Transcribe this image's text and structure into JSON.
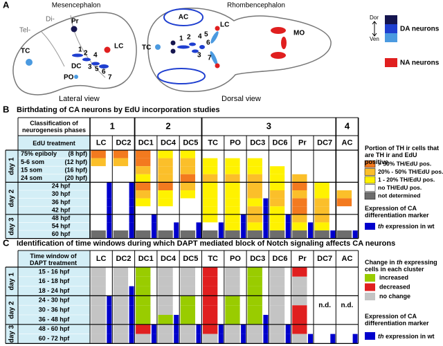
{
  "panel_a": {
    "label": "A",
    "mesencephalon": "Mesencephalon",
    "rhombencephalon": "Rhombencephalon",
    "lateral": {
      "di": "Di-",
      "tel": "Tel-",
      "pr": "Pr",
      "lc": "LC",
      "tc": "TC",
      "dc": "DC",
      "po": "PO",
      "numbers": [
        "1",
        "2",
        "3",
        "4",
        "5",
        "6",
        "7"
      ],
      "caption": "Lateral view"
    },
    "dorsal": {
      "ac": "AC",
      "lc": "LC",
      "tc": "TC",
      "mo": "MO",
      "numbers": [
        "1",
        "2",
        "3",
        "4",
        "5",
        "6",
        "7"
      ],
      "caption": "Dorsal view"
    },
    "legend": {
      "dor": "Dor",
      "ven": "Ven",
      "da": "DA neurons",
      "na": "NA neurons"
    }
  },
  "panel_b": {
    "label": "B",
    "title": "Birthdating of CA neurons by EdU incorporation studies",
    "phase_header": "Classification of neurogenesis phases",
    "treatment_header": "EdU treatment",
    "phases": [
      {
        "label": "1",
        "clusters": [
          {
            "name": "LC",
            "cells": [
              0,
              1,
              3,
              3,
              3,
              3,
              3,
              3,
              3,
              3,
              4
            ],
            "th": [
              0,
              0,
              0,
              0,
              1,
              1,
              1,
              1,
              1,
              1,
              1
            ]
          },
          {
            "name": "DC2",
            "cells": [
              0,
              1,
              3,
              3,
              3,
              3,
              3,
              3,
              3,
              3,
              4
            ],
            "th": [
              0,
              0,
              0,
              0,
              1,
              1,
              1,
              1,
              1,
              1,
              1
            ]
          }
        ]
      },
      {
        "label": "2",
        "clusters": [
          {
            "name": "DC1",
            "cells": [
              0,
              0,
              1,
              2,
              0,
              1,
              2,
              3,
              3,
              3,
              4
            ],
            "th": [
              0,
              0,
              0,
              0,
              0,
              0,
              0,
              0,
              1,
              1,
              1
            ]
          },
          {
            "name": "DC4",
            "cells": [
              2,
              1,
              1,
              1,
              0,
              2,
              2,
              3,
              3,
              3,
              4
            ],
            "th": [
              0,
              0,
              0,
              0,
              0,
              0,
              0,
              0,
              0,
              1,
              1
            ]
          },
          {
            "name": "DC5",
            "cells": [
              2,
              1,
              1,
              0,
              1,
              2,
              3,
              3,
              3,
              3,
              4
            ],
            "th": [
              0,
              0,
              0,
              0,
              0,
              0,
              0,
              0,
              0,
              1,
              1
            ]
          }
        ]
      },
      {
        "label": "3",
        "clusters": [
          {
            "name": "TC",
            "cells": [
              3,
              2,
              2,
              1,
              2,
              2,
              2,
              2,
              2,
              3,
              4
            ],
            "th": [
              0,
              0,
              0,
              0,
              0,
              0,
              0,
              0,
              0,
              1,
              1
            ]
          },
          {
            "name": "PO",
            "cells": [
              3,
              2,
              2,
              1,
              2,
              2,
              2,
              2,
              2,
              2,
              4
            ],
            "th": [
              0,
              0,
              0,
              0,
              0,
              0,
              0,
              0,
              1,
              1,
              1
            ]
          },
          {
            "name": "DC3",
            "cells": [
              3,
              2,
              2,
              1,
              1,
              1,
              2,
              1,
              1,
              2,
              4
            ],
            "th": [
              0,
              0,
              0,
              0,
              0,
              0,
              1,
              1,
              1,
              1,
              1
            ]
          },
          {
            "name": "DC6",
            "cells": [
              3,
              3,
              2,
              2,
              2,
              1,
              1,
              2,
              2,
              2,
              4
            ],
            "th": [
              0,
              0,
              0,
              0,
              0,
              0,
              0,
              0,
              1,
              1,
              1
            ]
          },
          {
            "name": "Pr",
            "cells": [
              3,
              3,
              3,
              1,
              0,
              1,
              0,
              0,
              1,
              2,
              4
            ],
            "th": [
              0,
              0,
              0,
              0,
              0,
              0,
              0,
              0,
              0,
              1,
              1
            ]
          },
          {
            "name": "DC7",
            "cells": [
              3,
              3,
              3,
              3,
              2,
              2,
              1,
              1,
              1,
              2,
              4
            ],
            "th": [
              0,
              0,
              0,
              0,
              0,
              0,
              0,
              0,
              0,
              0,
              1
            ]
          }
        ]
      },
      {
        "label": "4",
        "clusters": [
          {
            "name": "AC",
            "cells": [
              3,
              3,
              3,
              3,
              3,
              1,
              0,
              3,
              3,
              3,
              4
            ],
            "th": [
              0,
              0,
              0,
              0,
              0,
              0,
              0,
              0,
              0,
              0,
              1
            ]
          }
        ]
      }
    ],
    "days": [
      {
        "label": "day 1",
        "rows": [
          {
            "stage": "75% epiboly",
            "hpf": "(8 hpf)"
          },
          {
            "stage": "5-6 som",
            "hpf": "(12 hpf)"
          },
          {
            "stage": "15 som",
            "hpf": "(16 hpf)"
          },
          {
            "stage": "24 som",
            "hpf": "(20 hpf)"
          }
        ]
      },
      {
        "label": "day 2",
        "rows": [
          {
            "stage": "24 hpf"
          },
          {
            "stage": "30 hpf"
          },
          {
            "stage": "36 hpf"
          },
          {
            "stage": "42 hpf"
          }
        ]
      },
      {
        "label": "day 3",
        "rows": [
          {
            "stage": "48 hpf"
          },
          {
            "stage": "54 hpf"
          },
          {
            "stage": "60 hpf"
          }
        ]
      }
    ],
    "legend_title": "Portion of TH ir cells that are TH ir and EdU positive",
    "legend": [
      {
        "label": "> 50% TH/EdU pos.",
        "color": "#f37a1f"
      },
      {
        "label": "20% - 50% TH/EdU pos.",
        "color": "#fbbf2a"
      },
      {
        "label": "1 - 20% TH/EdU pos.",
        "color": "#fff200"
      },
      {
        "label": "no  TH/EdU pos.",
        "color": "#ffffff"
      },
      {
        "label": "not determined",
        "color": "#6d6d6d"
      }
    ],
    "marker_title": "Expression of CA differentiation marker",
    "marker": {
      "gene": "th",
      "text": "expression in wt",
      "color": "#0000cc"
    }
  },
  "panel_c": {
    "label": "C",
    "title": "Identification of time windows during which DAPT mediated block of Notch signaling affects CA neurons",
    "treatment_header": "Time window of DAPT treatment",
    "clusters": [
      {
        "name": "LC",
        "cells": [
          2,
          2,
          2,
          2,
          2,
          2,
          2,
          2
        ],
        "th": [
          0,
          0,
          0,
          1,
          1,
          1,
          1,
          1
        ]
      },
      {
        "name": "DC2",
        "cells": [
          2,
          2,
          2,
          2,
          2,
          2,
          2,
          2
        ],
        "th": [
          0,
          0,
          1,
          1,
          1,
          1,
          1,
          1
        ]
      },
      {
        "name": "DC1",
        "cells": [
          0,
          0,
          0,
          0,
          0,
          0,
          1,
          2
        ],
        "th": [
          0,
          0,
          0,
          0,
          0,
          0,
          1,
          1
        ]
      },
      {
        "name": "DC4",
        "cells": [
          2,
          2,
          2,
          2,
          2,
          0,
          2,
          2
        ],
        "th": [
          0,
          0,
          0,
          0,
          0,
          1,
          1,
          1
        ]
      },
      {
        "name": "DC5",
        "cells": [
          2,
          2,
          2,
          0,
          0,
          0,
          2,
          2
        ],
        "th": [
          0,
          0,
          0,
          0,
          0,
          0,
          1,
          1
        ]
      },
      {
        "name": "TC",
        "cells": [
          1,
          1,
          1,
          1,
          1,
          1,
          1,
          2
        ],
        "th": [
          0,
          0,
          0,
          0,
          0,
          0,
          1,
          1
        ]
      },
      {
        "name": "PO",
        "cells": [
          2,
          2,
          2,
          0,
          0,
          0,
          2,
          2
        ],
        "th": [
          0,
          0,
          0,
          0,
          0,
          0,
          1,
          1
        ]
      },
      {
        "name": "DC3",
        "cells": [
          0,
          0,
          0,
          0,
          0,
          0,
          2,
          2
        ],
        "th": [
          0,
          0,
          0,
          0,
          0,
          1,
          1,
          1
        ]
      },
      {
        "name": "DC6",
        "cells": [
          2,
          2,
          2,
          2,
          2,
          2,
          2,
          2
        ],
        "th": [
          0,
          0,
          0,
          0,
          0,
          0,
          1,
          1
        ]
      },
      {
        "name": "Pr",
        "cells": [
          1,
          2,
          2,
          2,
          1,
          1,
          1,
          2
        ],
        "th": [
          0,
          0,
          0,
          0,
          0,
          0,
          0,
          1
        ]
      },
      {
        "name": "DC7",
        "cells": [
          null,
          null,
          null,
          null,
          null,
          null,
          null,
          null
        ],
        "th": [
          0,
          0,
          0,
          0,
          0,
          0,
          0,
          1
        ],
        "note": "n.d."
      },
      {
        "name": "AC",
        "cells": [
          null,
          null,
          null,
          null,
          null,
          null,
          null,
          null
        ],
        "th": [
          0,
          0,
          0,
          0,
          0,
          0,
          0,
          1
        ],
        "note": "n.d."
      }
    ],
    "days": [
      {
        "label": "day 1",
        "rows": [
          "15 - 16 hpf",
          "16 - 18 hpf",
          "18 - 24 hpf"
        ]
      },
      {
        "label": "day 2",
        "rows": [
          "24 - 30 hpf",
          "30 - 36 hpf",
          "36 - 48 hpf"
        ]
      },
      {
        "label": "day 3",
        "rows": [
          "48 - 60 hpf",
          "60 - 72 hpf"
        ]
      }
    ],
    "legend_title": {
      "pre": "Change in",
      "gene": "th",
      "post": "expressing cells in each cluster"
    },
    "legend": [
      {
        "label": "increased",
        "color": "#99cc00"
      },
      {
        "label": "decreased",
        "color": "#e01f1f"
      },
      {
        "label": "no change",
        "color": "#c4c4c4"
      }
    ],
    "marker_title": "Expression of CA differentiation marker",
    "marker": {
      "gene": "th",
      "text": "expression in wt",
      "color": "#0000cc"
    }
  }
}
